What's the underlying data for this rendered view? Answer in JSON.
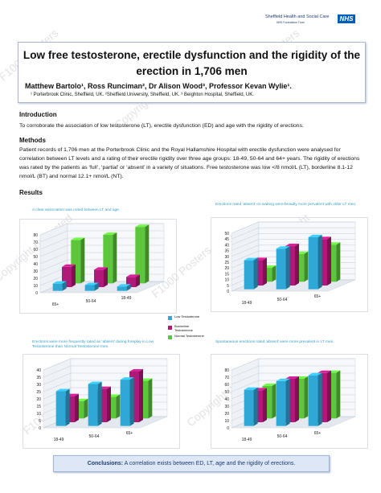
{
  "logo": {
    "org": "Sheffield Health and Social Care",
    "sub": "NHS Foundation Trust",
    "nhs": "NHS"
  },
  "header": {
    "title": "Low free testosterone, erectile dysfunction and the rigidity of the erection in 1,706 men",
    "authors": "Matthew Bartolo¹, Ross Runciman², Dr Alison Wood³, Professor Kevan Wylie¹.",
    "affiliations": "¹ Porterbrook Clinic, Sheffield, UK.  ²Sheffield University, Sheffield, UK.  ³ Beighton Hospital, Sheffield, UK."
  },
  "sections": {
    "intro_heading": "Introduction",
    "intro_text": "To corroborate the association of low testosterone (LT), erectile dysfunction (ED) and age with the rigidity of erections.",
    "methods_heading": "Methods",
    "methods_text": "Patient records of 1,706 men at the Porterbrook Clinic and the Royal Hallamshire Hospital with erectile dysfunction were analysed for correlation between LT levels and a rating of their erectile rigidity over three age groups: 18-49, 50-64 and 64+ years. The rigidity of erections was rated by the patients as ‘full’, ‘partial’ or ‘absent’ in a variety of situations. Free testosterone was low </8 nmol/L (LT), borderline 8.1-12 nmol/L (BT) and normal 12.1+ nmol/L (NT).",
    "results_heading": "Results"
  },
  "legend": {
    "items": [
      {
        "label": "Low Testosterone",
        "color": "#2fa8d8"
      },
      {
        "label": "Borderline Testosterone",
        "color": "#b0197a"
      },
      {
        "label": "Normal Testosterone",
        "color": "#5cc73a"
      }
    ]
  },
  "chart_data": [
    {
      "type": "bar",
      "title": "A clear association was noted between LT and age.",
      "categories": [
        "65+",
        "50-64",
        "18-49"
      ],
      "yticks": [
        0,
        10,
        20,
        30,
        40,
        50,
        60,
        70,
        80
      ],
      "ylim": [
        0,
        80
      ],
      "series": [
        {
          "name": "Low Testosterone",
          "values": [
            10,
            8,
            6
          ]
        },
        {
          "name": "Borderline Testosterone",
          "values": [
            28,
            24,
            14
          ]
        },
        {
          "name": "Normal Testosterone",
          "values": [
            60,
            67,
            78
          ]
        }
      ]
    },
    {
      "type": "bar",
      "title": "Erections rated ‘absent’ on waking were broadly more prevalent with older LT men.",
      "categories": [
        "18-49",
        "50-64",
        "65+"
      ],
      "yticks": [
        0,
        5,
        10,
        15,
        20,
        25,
        30,
        35,
        40,
        45,
        50
      ],
      "ylim": [
        0,
        50
      ],
      "series": [
        {
          "name": "Low Testosterone",
          "values": [
            25,
            35,
            45
          ]
        },
        {
          "name": "Borderline Testosterone",
          "values": [
            22,
            34,
            40
          ]
        },
        {
          "name": "Normal Testosterone",
          "values": [
            12,
            24,
            32
          ]
        }
      ]
    },
    {
      "type": "bar",
      "title": "Erections were more frequently rated as ‘absent’ during foreplay in Low Testosterone than Normal Testosterone men.",
      "categories": [
        "18-49",
        "50-64",
        "65+"
      ],
      "yticks": [
        0,
        5,
        10,
        15,
        20,
        25,
        30,
        35,
        40
      ],
      "ylim": [
        0,
        40
      ],
      "series": [
        {
          "name": "Low Testosterone",
          "values": [
            24,
            29,
            32
          ]
        },
        {
          "name": "Borderline Testosterone",
          "values": [
            18,
            23,
            35
          ]
        },
        {
          "name": "Normal Testosterone",
          "values": [
            12,
            15,
            26
          ]
        }
      ]
    },
    {
      "type": "bar",
      "title": "Spontaneous erections rated ‘absent’ were more prevalent in LT men.",
      "categories": [
        "18-49",
        "50-64",
        "65+"
      ],
      "yticks": [
        0,
        10,
        20,
        30,
        40,
        50,
        60,
        70,
        80
      ],
      "ylim": [
        0,
        80
      ],
      "series": [
        {
          "name": "Low Testosterone",
          "values": [
            50,
            62,
            70
          ]
        },
        {
          "name": "Borderline Testosterone",
          "values": [
            44,
            60,
            68
          ]
        },
        {
          "name": "Normal Testosterone",
          "values": [
            45,
            55,
            63
          ]
        }
      ]
    }
  ],
  "conclusions": {
    "label": "Conclusions:",
    "text": " A correlation exists between ED, LT, age and the rigidity of erections."
  }
}
